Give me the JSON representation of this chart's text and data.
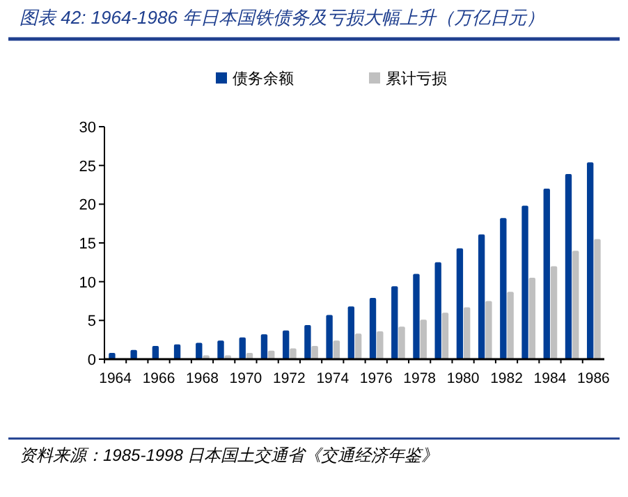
{
  "chart_data": {
    "type": "bar",
    "title": "图表 42: 1964-1986 年日本国铁债务及亏损大幅上升（万亿日元）",
    "categories": [
      "1964",
      null,
      "1966",
      null,
      "1968",
      null,
      "1970",
      null,
      "1972",
      null,
      "1974",
      null,
      "1976",
      null,
      "1978",
      null,
      "1980",
      null,
      "1982",
      null,
      "1984",
      null,
      "1986"
    ],
    "series": [
      {
        "name": "债务余额",
        "color": "#003e97",
        "values": [
          0.8,
          1.2,
          1.7,
          1.9,
          2.1,
          2.4,
          2.8,
          3.2,
          3.7,
          4.4,
          5.7,
          6.8,
          7.9,
          9.4,
          11.0,
          12.5,
          14.3,
          16.1,
          18.2,
          19.8,
          22.0,
          23.9,
          25.4
        ]
      },
      {
        "name": "累计亏损",
        "color": "#c0c0c0",
        "values": [
          0,
          0,
          0,
          null,
          0.5,
          0.5,
          0.8,
          1.1,
          1.4,
          1.7,
          2.4,
          3.3,
          3.6,
          4.2,
          5.1,
          6.0,
          6.7,
          7.5,
          8.7,
          10.5,
          12.0,
          14.0,
          15.5
        ]
      }
    ],
    "ylim": [
      0,
      30
    ],
    "yticks": [
      0,
      5,
      10,
      15,
      20,
      25,
      30
    ],
    "grid": false,
    "legend": "top",
    "annotations": [
      "资料来源：1985-1998 日本国土交通省《交通经济年鉴》"
    ]
  }
}
